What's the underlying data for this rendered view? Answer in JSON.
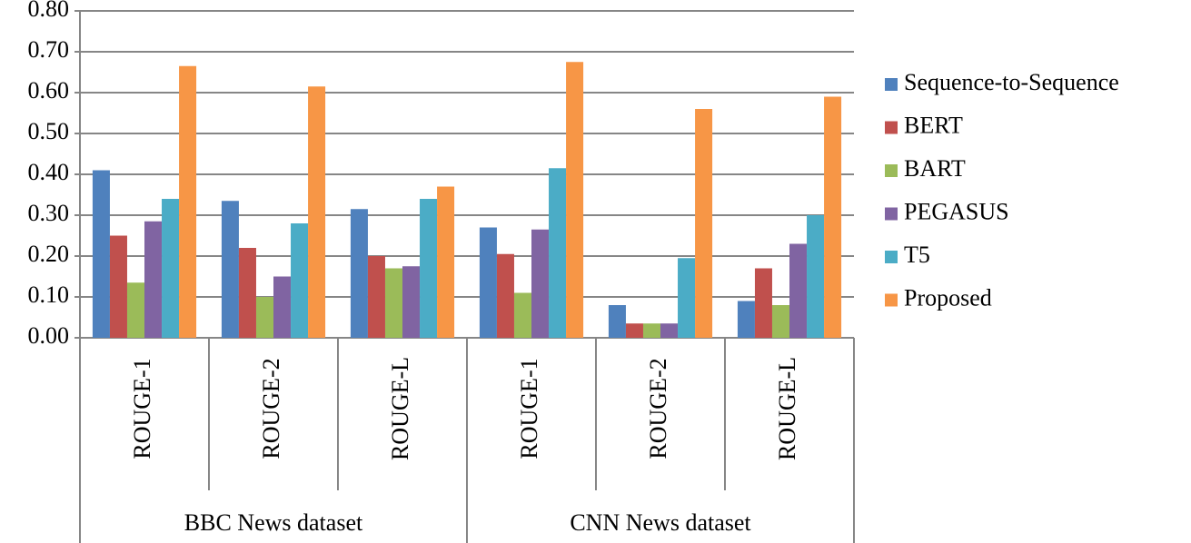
{
  "chart_data": {
    "type": "bar",
    "groups": [
      {
        "name": "BBC News dataset",
        "categories": [
          "ROUGE-1",
          "ROUGE-2",
          "ROUGE-L"
        ]
      },
      {
        "name": "CNN News dataset",
        "categories": [
          "ROUGE-1",
          "ROUGE-2",
          "ROUGE-L"
        ]
      }
    ],
    "series": [
      {
        "name": "Sequence-to-Sequence",
        "color": "#4f81bd",
        "values": [
          0.41,
          0.335,
          0.315,
          0.27,
          0.08,
          0.09
        ]
      },
      {
        "name": "BERT",
        "color": "#c0504d",
        "values": [
          0.25,
          0.22,
          0.2,
          0.205,
          0.035,
          0.17
        ]
      },
      {
        "name": "BART",
        "color": "#9bbb59",
        "values": [
          0.135,
          0.1,
          0.17,
          0.11,
          0.035,
          0.08
        ]
      },
      {
        "name": "PEGASUS",
        "color": "#8064a2",
        "values": [
          0.285,
          0.15,
          0.175,
          0.265,
          0.035,
          0.23
        ]
      },
      {
        "name": "T5",
        "color": "#4bacc6",
        "values": [
          0.34,
          0.28,
          0.34,
          0.415,
          0.195,
          0.3
        ]
      },
      {
        "name": "Proposed",
        "color": "#f79646",
        "values": [
          0.665,
          0.615,
          0.37,
          0.675,
          0.56,
          0.59
        ]
      }
    ],
    "ylim": [
      0,
      0.8
    ],
    "yticks": [
      {
        "value": 0,
        "label": "0.00"
      },
      {
        "value": 0.1,
        "label": "0.10"
      },
      {
        "value": 0.2,
        "label": "0.20"
      },
      {
        "value": 0.3,
        "label": "0.30"
      },
      {
        "value": 0.4,
        "label": "0.40"
      },
      {
        "value": 0.5,
        "label": "0.50"
      },
      {
        "value": 0.6,
        "label": "0.60"
      },
      {
        "value": 0.7,
        "label": "0.70"
      },
      {
        "value": 0.8,
        "label": "0.80"
      }
    ],
    "grid": true,
    "legend": "right"
  }
}
